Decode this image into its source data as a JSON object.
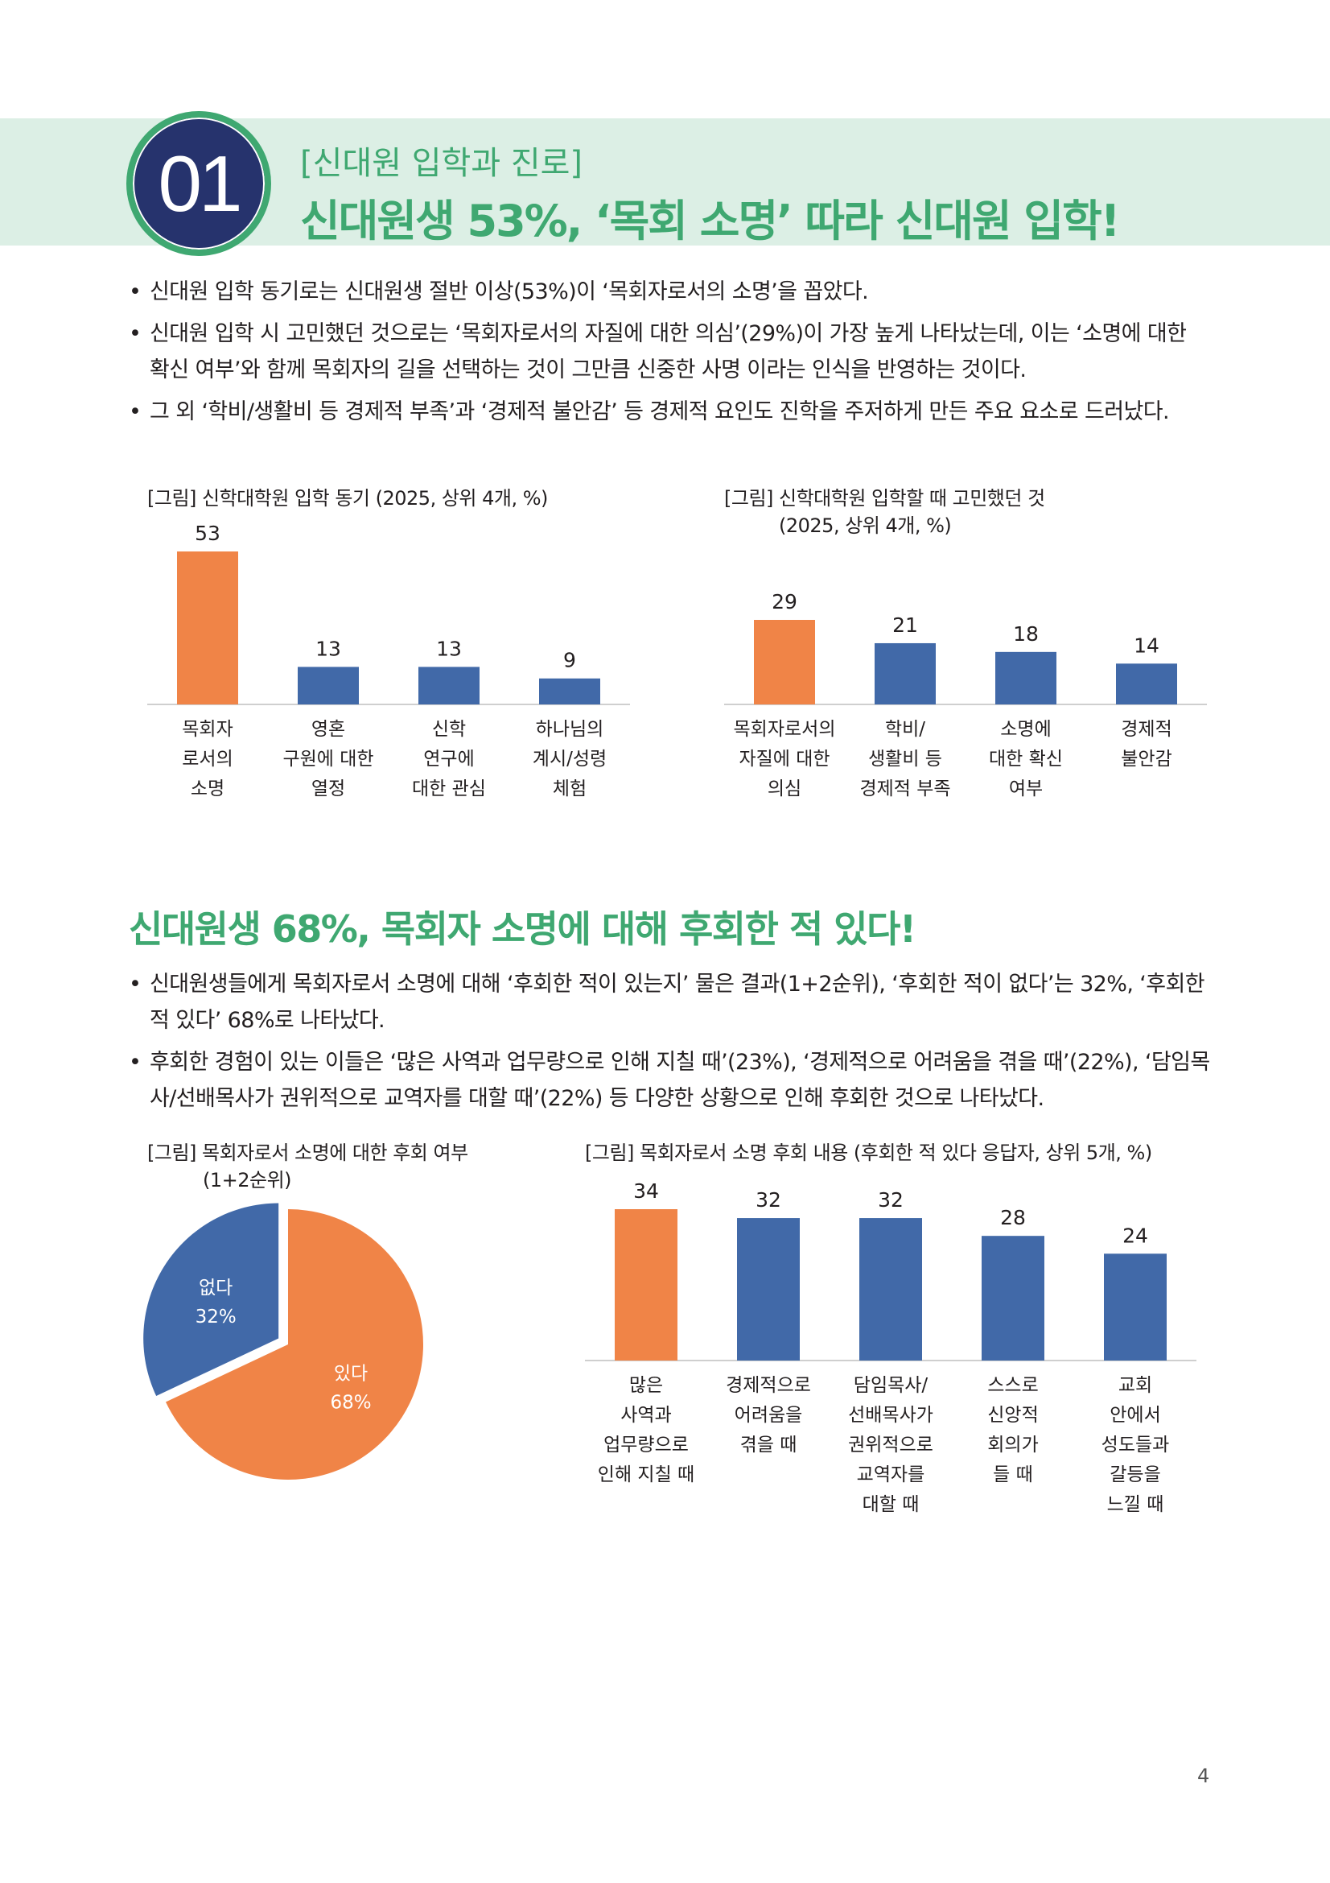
{
  "header": {
    "number": "01",
    "category": "[신대원 입학과 진로]",
    "headline": "신대원생 53%, ‘목회 소명’ 따라 신대원 입학!"
  },
  "section1": {
    "bullets": [
      "신대원 입학 동기로는 신대원생 절반 이상(53%)이 ‘목회자로서의 소명’을 꼽았다.",
      "신대원 입학 시 고민했던 것으로는 ‘목회자로서의 자질에 대한 의심’(29%)이 가장 높게 나타났는데, 이는 ‘소명에 대한 확신 여부’와 함께 목회자의 길을 선택하는 것이 그만큼 신중한 사명 이라는 인식을 반영하는 것이다.",
      "그 외 ‘학비/생활비 등 경제적 부족’과 ‘경제적 불안감’ 등 경제적 요인도 진학을 주저하게 만든 주요 요소로 드러났다."
    ]
  },
  "section2": {
    "headline": "신대원생 68%, 목회자 소명에 대해 후회한 적 있다!",
    "bullets": [
      "신대원생들에게 목회자로서 소명에 대해 ‘후회한 적이 있는지’ 물은 결과(1+2순위), ‘후회한 적이 없다’는 32%, ‘후회한 적 있다’ 68%로 나타났다.",
      "후회한 경험이 있는 이들은 ‘많은 사역과 업무량으로 인해 지칠 때’(23%), ‘경제적으로 어려움을 겪을 때’(22%), ‘담임목사/선배목사가 권위적으로 교역자를 대할 때’(22%) 등 다양한 상황으로 인해 후회한 것으로 나타났다."
    ]
  },
  "chart_data": [
    {
      "type": "bar",
      "title": "[그림] 신학대학원 입학 동기 (2025, 상위 4개, %)",
      "categories": [
        [
          "목회자",
          "로서의",
          "소명"
        ],
        [
          "영혼",
          "구원에 대한",
          "열정"
        ],
        [
          "신학",
          "연구에",
          "대한 관심"
        ],
        [
          "하나님의",
          "계시/성령",
          "체험"
        ]
      ],
      "values": [
        53,
        13,
        13,
        9
      ],
      "highlight_index": 0,
      "colors": {
        "highlight": "#f08447",
        "base": "#4169a8"
      },
      "ylim": [
        0,
        53
      ]
    },
    {
      "type": "bar",
      "title": "[그림] 신학대학원 입학할 때 고민했던 것",
      "subtitle": "(2025, 상위 4개, %)",
      "categories": [
        [
          "목회자로서의",
          "자질에 대한",
          "의심"
        ],
        [
          "학비/",
          "생활비 등",
          "경제적 부족"
        ],
        [
          "소명에",
          "대한 확신",
          "여부"
        ],
        [
          "경제적",
          "불안감"
        ]
      ],
      "values": [
        29,
        21,
        18,
        14
      ],
      "highlight_index": 0,
      "colors": {
        "highlight": "#f08447",
        "base": "#4169a8"
      },
      "ylim": [
        0,
        29
      ]
    },
    {
      "type": "pie",
      "title": "[그림] 목회자로서 소명에 대한 후회 여부",
      "subtitle": "(1+2순위)",
      "slices": [
        {
          "label": "없다",
          "value": 32,
          "value_label": "32%",
          "color": "#4169a8"
        },
        {
          "label": "있다",
          "value": 68,
          "value_label": "68%",
          "color": "#f08447"
        }
      ]
    },
    {
      "type": "bar",
      "title": "[그림] 목회자로서 소명 후회 내용 (후회한 적 있다 응답자, 상위 5개, %)",
      "categories": [
        [
          "많은",
          "사역과",
          "업무량으로",
          "인해 지칠 때"
        ],
        [
          "경제적으로",
          "어려움을",
          "겪을 때"
        ],
        [
          "담임목사/",
          "선배목사가",
          "권위적으로",
          "교역자를",
          "대할 때"
        ],
        [
          "스스로",
          "신앙적",
          "회의가",
          "들 때"
        ],
        [
          "교회",
          "안에서",
          "성도들과",
          "갈등을",
          "느낄 때"
        ]
      ],
      "values": [
        34,
        32,
        32,
        28,
        24
      ],
      "highlight_index": 0,
      "colors": {
        "highlight": "#f08447",
        "base": "#4169a8"
      },
      "ylim": [
        0,
        34
      ]
    }
  ],
  "page_number": "4"
}
